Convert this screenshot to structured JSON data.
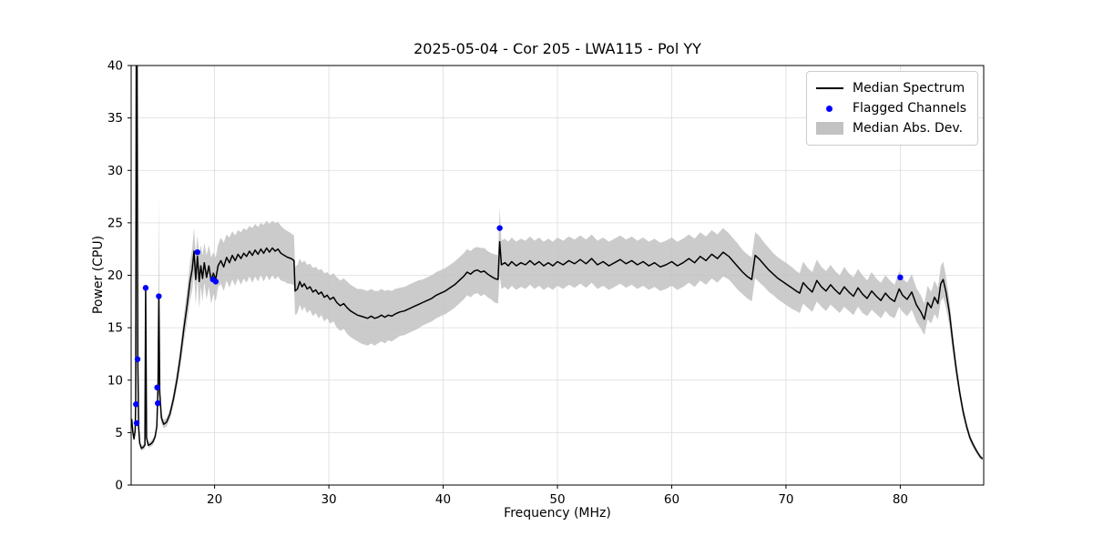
{
  "chart_data": {
    "type": "line",
    "title": "2025-05-04 - Cor 205 - LWA115 - Pol YY",
    "xlabel": "Frequency (MHz)",
    "ylabel": "Power (CPU)",
    "xlim": [
      12.7,
      87.3
    ],
    "ylim": [
      0,
      40
    ],
    "xticks": [
      20,
      30,
      40,
      50,
      60,
      70,
      80
    ],
    "yticks": [
      0,
      5,
      10,
      15,
      20,
      25,
      30,
      35,
      40
    ],
    "grid": true,
    "legend_position": "upper right",
    "colors": {
      "line": "#000000",
      "flagged": "#0000ff",
      "band": "#c2c2c2",
      "grid": "#dcdcdc",
      "spine": "#000000"
    },
    "legend": [
      {
        "label": "Median Spectrum",
        "type": "line"
      },
      {
        "label": "Flagged Channels",
        "type": "dot"
      },
      {
        "label": "Median Abs. Dev.",
        "type": "patch"
      }
    ],
    "series": [
      {
        "name": "Median Spectrum",
        "note": "points are [frequency_MHz, power_CPU, median_abs_dev]",
        "points": [
          [
            12.75,
            6.3,
            0.3
          ],
          [
            12.85,
            5.0,
            0.3
          ],
          [
            12.95,
            4.4,
            0.3
          ],
          [
            13.05,
            5.2,
            0.3
          ],
          [
            13.1,
            8.0,
            0.4
          ],
          [
            13.15,
            41,
            0.5
          ],
          [
            13.22,
            41,
            0.5
          ],
          [
            13.28,
            12.0,
            0.5
          ],
          [
            13.35,
            5.5,
            0.3
          ],
          [
            13.45,
            4.0,
            0.3
          ],
          [
            13.6,
            3.5,
            0.25
          ],
          [
            13.75,
            3.6,
            0.25
          ],
          [
            13.9,
            3.8,
            0.3
          ],
          [
            13.97,
            19.0,
            0.6
          ],
          [
            14.05,
            4.5,
            0.3
          ],
          [
            14.2,
            3.8,
            0.25
          ],
          [
            14.4,
            3.9,
            0.25
          ],
          [
            14.6,
            4.1,
            0.3
          ],
          [
            14.8,
            4.6,
            0.3
          ],
          [
            14.95,
            5.6,
            0.4
          ],
          [
            15.05,
            9.5,
            1.2
          ],
          [
            15.12,
            18.2,
            9.6
          ],
          [
            15.2,
            8.8,
            1.0
          ],
          [
            15.35,
            6.4,
            0.5
          ],
          [
            15.55,
            5.8,
            0.4
          ],
          [
            15.8,
            6.0,
            0.4
          ],
          [
            16.1,
            6.8,
            0.5
          ],
          [
            16.4,
            8.2,
            0.6
          ],
          [
            16.7,
            10.0,
            0.8
          ],
          [
            17.0,
            12.2,
            1.0
          ],
          [
            17.3,
            14.8,
            1.2
          ],
          [
            17.6,
            17.2,
            1.5
          ],
          [
            17.85,
            19.4,
            1.8
          ],
          [
            18.05,
            20.6,
            2.0
          ],
          [
            18.2,
            22.3,
            2.2
          ],
          [
            18.35,
            19.6,
            2.4
          ],
          [
            18.5,
            21.8,
            2.0
          ],
          [
            18.65,
            19.4,
            2.6
          ],
          [
            18.8,
            20.9,
            2.0
          ],
          [
            18.95,
            19.7,
            2.2
          ],
          [
            19.1,
            21.2,
            1.9
          ],
          [
            19.3,
            19.8,
            2.1
          ],
          [
            19.5,
            20.9,
            2.0
          ],
          [
            19.7,
            19.5,
            2.2
          ],
          [
            19.9,
            20.2,
            2.0
          ],
          [
            20.1,
            19.6,
            2.1
          ],
          [
            20.3,
            20.9,
            2.0
          ],
          [
            20.55,
            21.4,
            2.2
          ],
          [
            20.8,
            20.8,
            2.3
          ],
          [
            21.05,
            21.7,
            2.2
          ],
          [
            21.3,
            21.2,
            2.4
          ],
          [
            21.55,
            21.9,
            2.3
          ],
          [
            21.8,
            21.4,
            2.4
          ],
          [
            22.05,
            22.0,
            2.3
          ],
          [
            22.3,
            21.6,
            2.5
          ],
          [
            22.55,
            22.1,
            2.4
          ],
          [
            22.8,
            21.8,
            2.5
          ],
          [
            23.05,
            22.3,
            2.4
          ],
          [
            23.3,
            21.9,
            2.6
          ],
          [
            23.55,
            22.4,
            2.5
          ],
          [
            23.8,
            22.0,
            2.6
          ],
          [
            24.05,
            22.5,
            2.5
          ],
          [
            24.3,
            22.1,
            2.7
          ],
          [
            24.55,
            22.6,
            2.6
          ],
          [
            24.8,
            22.2,
            2.7
          ],
          [
            25.05,
            22.6,
            2.6
          ],
          [
            25.3,
            22.3,
            2.7
          ],
          [
            25.55,
            22.5,
            2.6
          ],
          [
            25.8,
            22.1,
            2.6
          ],
          [
            26.1,
            21.9,
            2.5
          ],
          [
            26.4,
            21.7,
            2.5
          ],
          [
            26.7,
            21.6,
            2.4
          ],
          [
            26.95,
            21.4,
            2.4
          ],
          [
            27.05,
            18.5,
            2.3
          ],
          [
            27.25,
            18.7,
            2.3
          ],
          [
            27.45,
            19.4,
            2.2
          ],
          [
            27.65,
            18.9,
            2.3
          ],
          [
            27.85,
            19.2,
            2.2
          ],
          [
            28.1,
            18.7,
            2.3
          ],
          [
            28.35,
            18.9,
            2.2
          ],
          [
            28.6,
            18.4,
            2.3
          ],
          [
            28.85,
            18.6,
            2.2
          ],
          [
            29.1,
            18.2,
            2.3
          ],
          [
            29.35,
            18.4,
            2.2
          ],
          [
            29.6,
            17.9,
            2.3
          ],
          [
            29.85,
            18.1,
            2.2
          ],
          [
            30.1,
            17.7,
            2.3
          ],
          [
            30.4,
            17.9,
            2.3
          ],
          [
            30.7,
            17.4,
            2.4
          ],
          [
            31.0,
            17.1,
            2.4
          ],
          [
            31.3,
            17.3,
            2.4
          ],
          [
            31.6,
            16.9,
            2.5
          ],
          [
            31.9,
            16.6,
            2.5
          ],
          [
            32.2,
            16.4,
            2.5
          ],
          [
            32.5,
            16.2,
            2.5
          ],
          [
            32.8,
            16.1,
            2.6
          ],
          [
            33.1,
            16.0,
            2.6
          ],
          [
            33.4,
            15.9,
            2.6
          ],
          [
            33.7,
            16.1,
            2.6
          ],
          [
            34.0,
            15.9,
            2.6
          ],
          [
            34.3,
            16.0,
            2.5
          ],
          [
            34.6,
            16.2,
            2.5
          ],
          [
            34.9,
            16.0,
            2.5
          ],
          [
            35.2,
            16.2,
            2.4
          ],
          [
            35.5,
            16.1,
            2.4
          ],
          [
            35.8,
            16.3,
            2.4
          ],
          [
            36.2,
            16.5,
            2.3
          ],
          [
            36.6,
            16.6,
            2.3
          ],
          [
            37.0,
            16.8,
            2.3
          ],
          [
            37.4,
            17.0,
            2.3
          ],
          [
            37.8,
            17.2,
            2.3
          ],
          [
            38.2,
            17.4,
            2.2
          ],
          [
            38.6,
            17.6,
            2.2
          ],
          [
            39.0,
            17.8,
            2.2
          ],
          [
            39.4,
            18.1,
            2.2
          ],
          [
            39.8,
            18.3,
            2.2
          ],
          [
            40.2,
            18.5,
            2.2
          ],
          [
            40.6,
            18.8,
            2.2
          ],
          [
            41.0,
            19.1,
            2.2
          ],
          [
            41.4,
            19.5,
            2.2
          ],
          [
            41.8,
            19.9,
            2.2
          ],
          [
            42.1,
            20.3,
            2.2
          ],
          [
            42.4,
            20.1,
            2.2
          ],
          [
            42.7,
            20.4,
            2.2
          ],
          [
            43.0,
            20.5,
            2.2
          ],
          [
            43.3,
            20.3,
            2.3
          ],
          [
            43.6,
            20.4,
            2.2
          ],
          [
            43.9,
            20.1,
            2.2
          ],
          [
            44.2,
            19.9,
            2.2
          ],
          [
            44.5,
            19.7,
            2.3
          ],
          [
            44.8,
            19.6,
            2.3
          ],
          [
            44.95,
            23.2,
            3.2
          ],
          [
            45.1,
            21.0,
            2.3
          ],
          [
            45.4,
            21.2,
            2.3
          ],
          [
            45.7,
            20.9,
            2.3
          ],
          [
            46.0,
            21.3,
            2.3
          ],
          [
            46.4,
            20.9,
            2.3
          ],
          [
            46.8,
            21.2,
            2.3
          ],
          [
            47.2,
            21.0,
            2.3
          ],
          [
            47.6,
            21.4,
            2.3
          ],
          [
            48.0,
            21.0,
            2.3
          ],
          [
            48.4,
            21.3,
            2.3
          ],
          [
            48.8,
            20.9,
            2.3
          ],
          [
            49.2,
            21.2,
            2.3
          ],
          [
            49.6,
            20.9,
            2.3
          ],
          [
            50.0,
            21.3,
            2.3
          ],
          [
            50.5,
            21.0,
            2.3
          ],
          [
            51.0,
            21.4,
            2.3
          ],
          [
            51.5,
            21.1,
            2.3
          ],
          [
            52.0,
            21.5,
            2.3
          ],
          [
            52.5,
            21.1,
            2.3
          ],
          [
            53.0,
            21.6,
            2.3
          ],
          [
            53.5,
            21.0,
            2.3
          ],
          [
            54.0,
            21.3,
            2.3
          ],
          [
            54.5,
            20.9,
            2.3
          ],
          [
            55.0,
            21.2,
            2.3
          ],
          [
            55.5,
            21.5,
            2.3
          ],
          [
            56.0,
            21.1,
            2.3
          ],
          [
            56.5,
            21.4,
            2.3
          ],
          [
            57.0,
            21.0,
            2.3
          ],
          [
            57.5,
            21.3,
            2.3
          ],
          [
            58.0,
            20.9,
            2.3
          ],
          [
            58.5,
            21.2,
            2.3
          ],
          [
            59.0,
            20.8,
            2.3
          ],
          [
            59.5,
            21.0,
            2.3
          ],
          [
            60.0,
            21.3,
            2.3
          ],
          [
            60.5,
            20.9,
            2.3
          ],
          [
            61.0,
            21.2,
            2.3
          ],
          [
            61.5,
            21.6,
            2.3
          ],
          [
            62.0,
            21.2,
            2.3
          ],
          [
            62.5,
            21.8,
            2.3
          ],
          [
            63.0,
            21.4,
            2.3
          ],
          [
            63.5,
            22.0,
            2.3
          ],
          [
            64.0,
            21.6,
            2.3
          ],
          [
            64.5,
            22.2,
            2.3
          ],
          [
            65.0,
            21.8,
            2.2
          ],
          [
            65.4,
            21.3,
            2.2
          ],
          [
            65.8,
            20.8,
            2.2
          ],
          [
            66.2,
            20.3,
            2.1
          ],
          [
            66.6,
            19.9,
            2.1
          ],
          [
            67.0,
            19.6,
            2.1
          ],
          [
            67.3,
            21.9,
            2.2
          ],
          [
            67.7,
            21.5,
            2.2
          ],
          [
            68.1,
            21.0,
            2.1
          ],
          [
            68.5,
            20.5,
            2.1
          ],
          [
            68.9,
            20.1,
            2.0
          ],
          [
            69.3,
            19.7,
            2.0
          ],
          [
            69.7,
            19.4,
            2.0
          ],
          [
            70.1,
            19.1,
            2.0
          ],
          [
            70.5,
            18.8,
            2.0
          ],
          [
            70.9,
            18.5,
            1.9
          ],
          [
            71.2,
            18.3,
            1.9
          ],
          [
            71.5,
            19.3,
            2.0
          ],
          [
            71.9,
            18.8,
            1.9
          ],
          [
            72.3,
            18.4,
            1.9
          ],
          [
            72.7,
            19.5,
            2.0
          ],
          [
            73.1,
            18.9,
            1.9
          ],
          [
            73.5,
            18.5,
            1.9
          ],
          [
            73.9,
            19.1,
            1.9
          ],
          [
            74.3,
            18.6,
            1.8
          ],
          [
            74.7,
            18.2,
            1.8
          ],
          [
            75.1,
            18.9,
            1.9
          ],
          [
            75.5,
            18.4,
            1.8
          ],
          [
            75.9,
            18.0,
            1.8
          ],
          [
            76.3,
            18.8,
            1.8
          ],
          [
            76.7,
            18.2,
            1.8
          ],
          [
            77.1,
            17.8,
            1.7
          ],
          [
            77.5,
            18.5,
            1.8
          ],
          [
            77.9,
            18.0,
            1.7
          ],
          [
            78.3,
            17.6,
            1.7
          ],
          [
            78.7,
            18.3,
            1.7
          ],
          [
            79.1,
            17.8,
            1.7
          ],
          [
            79.5,
            17.5,
            1.6
          ],
          [
            79.9,
            18.7,
            1.7
          ],
          [
            80.2,
            18.1,
            1.6
          ],
          [
            80.6,
            17.7,
            1.6
          ],
          [
            81.0,
            18.4,
            1.7
          ],
          [
            81.4,
            17.2,
            1.6
          ],
          [
            81.8,
            16.5,
            1.6
          ],
          [
            82.1,
            15.8,
            1.5
          ],
          [
            82.4,
            17.4,
            1.6
          ],
          [
            82.7,
            16.9,
            1.5
          ],
          [
            83.0,
            17.9,
            1.6
          ],
          [
            83.3,
            17.3,
            1.5
          ],
          [
            83.55,
            19.2,
            1.7
          ],
          [
            83.75,
            19.6,
            1.7
          ],
          [
            84.0,
            18.4,
            1.5
          ],
          [
            84.3,
            16.4,
            1.2
          ],
          [
            84.6,
            13.6,
            1.0
          ],
          [
            84.9,
            11.0,
            0.8
          ],
          [
            85.2,
            8.8,
            0.6
          ],
          [
            85.5,
            7.0,
            0.5
          ],
          [
            85.8,
            5.6,
            0.4
          ],
          [
            86.1,
            4.5,
            0.35
          ],
          [
            86.4,
            3.8,
            0.3
          ],
          [
            86.7,
            3.2,
            0.25
          ],
          [
            87.0,
            2.7,
            0.2
          ],
          [
            87.2,
            2.5,
            0.2
          ]
        ]
      }
    ],
    "flagged_channels": [
      [
        13.12,
        7.7
      ],
      [
        13.18,
        5.9
      ],
      [
        13.26,
        12.0
      ],
      [
        13.97,
        18.8
      ],
      [
        14.98,
        9.3
      ],
      [
        15.03,
        7.8
      ],
      [
        15.12,
        18.0
      ],
      [
        18.5,
        22.2
      ],
      [
        19.85,
        19.6
      ],
      [
        20.1,
        19.4
      ],
      [
        44.95,
        24.5
      ],
      [
        80.0,
        19.8
      ]
    ]
  }
}
